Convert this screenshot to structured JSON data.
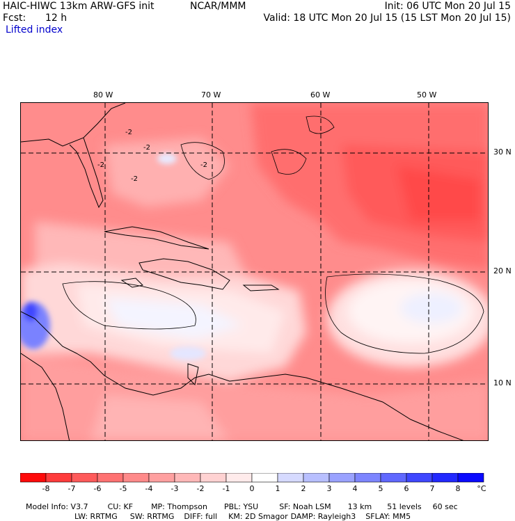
{
  "header": {
    "model": "HAIC-HIWC 13km ARW-GFS init",
    "org": "NCAR/MMM",
    "init": "Init: 06 UTC Mon 20 Jul 15",
    "fcst_label": "Fcst:",
    "fcst_value": "12 h",
    "valid": "Valid: 18 UTC Mon 20 Jul 15 (15 LST Mon 20 Jul 15)",
    "field": "Lifted index"
  },
  "map": {
    "lon_labels": [
      "80 W",
      "70 W",
      "60 W",
      "50 W"
    ],
    "lat_labels": [
      "30 N",
      "20 N",
      "10 N"
    ],
    "contour_labels": [
      "-2",
      "-2",
      "-2",
      "-2",
      "-2"
    ]
  },
  "legend": {
    "tick_labels": [
      "-8",
      "-7",
      "-6",
      "-5",
      "-4",
      "-3",
      "-2",
      "-1",
      "0",
      "1",
      "2",
      "3",
      "4",
      "5",
      "6",
      "7",
      "8"
    ],
    "unit": "°C",
    "colors": [
      "#ff0a0a",
      "#ff3c3c",
      "#ff5a5a",
      "#ff7272",
      "#ff8a8a",
      "#ffa0a0",
      "#ffb8b8",
      "#ffd2d2",
      "#ffebeb",
      "#ffffff",
      "#d6daff",
      "#b8bfff",
      "#9aa2ff",
      "#7d85ff",
      "#6068ff",
      "#3f47ff",
      "#2229ff",
      "#0a0aff"
    ]
  },
  "model_info": {
    "line1": [
      "Model Info: V3.7",
      "CU: KF",
      "MP: Thompson",
      "PBL: YSU",
      "SF: Noah LSM",
      "13 km",
      "51 levels",
      "60 sec"
    ],
    "line2": [
      "LW: RRTMG",
      "SW: RRTMG",
      "DIFF: full",
      "KM: 2D Smagor",
      "DAMP: Rayleigh3",
      "SFLAY: MM5"
    ]
  }
}
